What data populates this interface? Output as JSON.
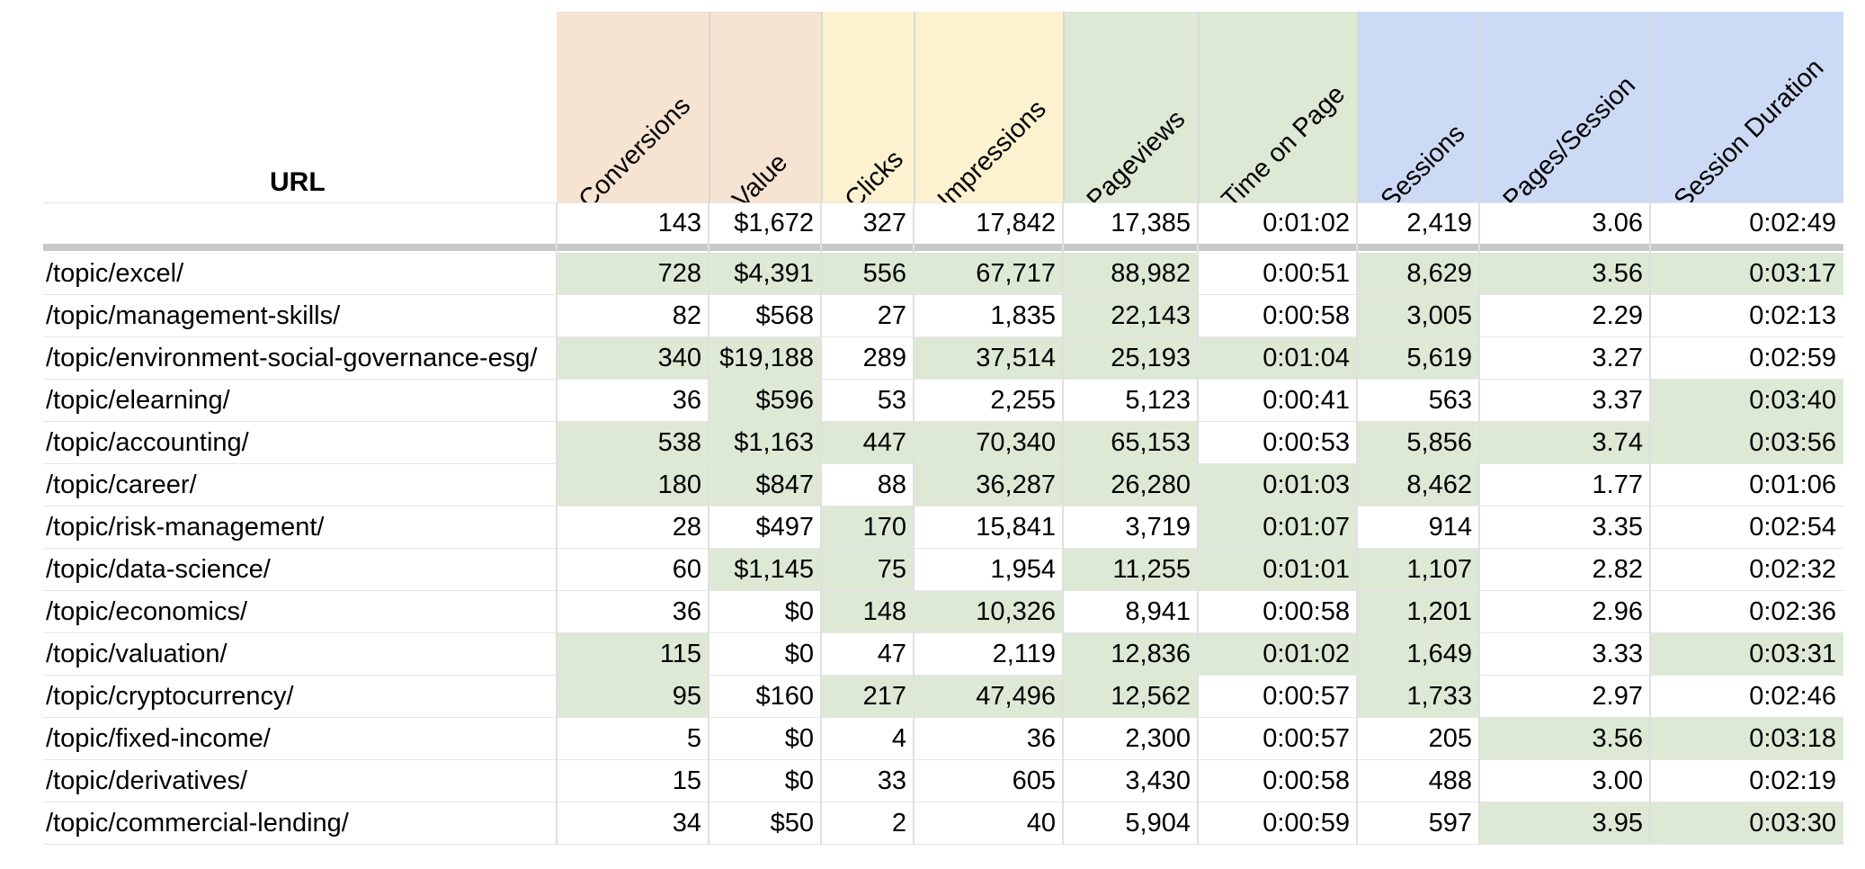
{
  "colors": {
    "conversion_header": "#f6e3d1",
    "clicks_header": "#fcf2cf",
    "engagement_header": "#dde9d5",
    "session_header": "#cddaf5",
    "highlight_cell": "#dde9d5",
    "separator": "#c9c9c9"
  },
  "table": {
    "url_header": "URL",
    "columns": [
      {
        "key": "conversions",
        "label": "Conversions"
      },
      {
        "key": "value",
        "label": "Value"
      },
      {
        "key": "clicks",
        "label": "Clicks"
      },
      {
        "key": "impressions",
        "label": "Impressions"
      },
      {
        "key": "pageviews",
        "label": "Pageviews"
      },
      {
        "key": "time_on_page",
        "label": "Time on Page"
      },
      {
        "key": "sessions",
        "label": "Sessions"
      },
      {
        "key": "pages_per_session",
        "label": "Pages/Session"
      },
      {
        "key": "session_duration",
        "label": "Session Duration"
      }
    ],
    "totals": [
      "143",
      "$1,672",
      "327",
      "17,842",
      "17,385",
      "0:01:02",
      "2,419",
      "3.06",
      "0:02:49"
    ],
    "rows": [
      {
        "url": "/topic/excel/",
        "values": [
          "728",
          "$4,391",
          "556",
          "67,717",
          "88,982",
          "0:00:51",
          "8,629",
          "3.56",
          "0:03:17"
        ],
        "highlight": [
          true,
          true,
          true,
          true,
          true,
          false,
          true,
          true,
          true
        ]
      },
      {
        "url": "/topic/management-skills/",
        "values": [
          "82",
          "$568",
          "27",
          "1,835",
          "22,143",
          "0:00:58",
          "3,005",
          "2.29",
          "0:02:13"
        ],
        "highlight": [
          false,
          false,
          false,
          false,
          true,
          false,
          true,
          false,
          false
        ]
      },
      {
        "url": "/topic/environment-social-governance-esg/",
        "values": [
          "340",
          "$19,188",
          "289",
          "37,514",
          "25,193",
          "0:01:04",
          "5,619",
          "3.27",
          "0:02:59"
        ],
        "highlight": [
          true,
          true,
          false,
          true,
          true,
          true,
          true,
          false,
          false
        ]
      },
      {
        "url": "/topic/elearning/",
        "values": [
          "36",
          "$596",
          "53",
          "2,255",
          "5,123",
          "0:00:41",
          "563",
          "3.37",
          "0:03:40"
        ],
        "highlight": [
          false,
          true,
          false,
          false,
          false,
          false,
          false,
          false,
          true
        ]
      },
      {
        "url": "/topic/accounting/",
        "values": [
          "538",
          "$1,163",
          "447",
          "70,340",
          "65,153",
          "0:00:53",
          "5,856",
          "3.74",
          "0:03:56"
        ],
        "highlight": [
          true,
          true,
          true,
          true,
          true,
          false,
          true,
          true,
          true
        ]
      },
      {
        "url": "/topic/career/",
        "values": [
          "180",
          "$847",
          "88",
          "36,287",
          "26,280",
          "0:01:03",
          "8,462",
          "1.77",
          "0:01:06"
        ],
        "highlight": [
          true,
          true,
          false,
          true,
          true,
          true,
          true,
          false,
          false
        ]
      },
      {
        "url": "/topic/risk-management/",
        "values": [
          "28",
          "$497",
          "170",
          "15,841",
          "3,719",
          "0:01:07",
          "914",
          "3.35",
          "0:02:54"
        ],
        "highlight": [
          false,
          false,
          true,
          false,
          false,
          true,
          false,
          false,
          false
        ]
      },
      {
        "url": "/topic/data-science/",
        "values": [
          "60",
          "$1,145",
          "75",
          "1,954",
          "11,255",
          "0:01:01",
          "1,107",
          "2.82",
          "0:02:32"
        ],
        "highlight": [
          false,
          true,
          true,
          false,
          true,
          true,
          true,
          false,
          false
        ]
      },
      {
        "url": "/topic/economics/",
        "values": [
          "36",
          "$0",
          "148",
          "10,326",
          "8,941",
          "0:00:58",
          "1,201",
          "2.96",
          "0:02:36"
        ],
        "highlight": [
          false,
          false,
          true,
          true,
          false,
          false,
          true,
          false,
          false
        ]
      },
      {
        "url": "/topic/valuation/",
        "values": [
          "115",
          "$0",
          "47",
          "2,119",
          "12,836",
          "0:01:02",
          "1,649",
          "3.33",
          "0:03:31"
        ],
        "highlight": [
          true,
          false,
          false,
          false,
          true,
          true,
          true,
          false,
          true
        ]
      },
      {
        "url": "/topic/cryptocurrency/",
        "values": [
          "95",
          "$160",
          "217",
          "47,496",
          "12,562",
          "0:00:57",
          "1,733",
          "2.97",
          "0:02:46"
        ],
        "highlight": [
          true,
          false,
          true,
          true,
          true,
          false,
          true,
          false,
          false
        ]
      },
      {
        "url": "/topic/fixed-income/",
        "values": [
          "5",
          "$0",
          "4",
          "36",
          "2,300",
          "0:00:57",
          "205",
          "3.56",
          "0:03:18"
        ],
        "highlight": [
          false,
          false,
          false,
          false,
          false,
          false,
          false,
          true,
          true
        ]
      },
      {
        "url": "/topic/derivatives/",
        "values": [
          "15",
          "$0",
          "33",
          "605",
          "3,430",
          "0:00:58",
          "488",
          "3.00",
          "0:02:19"
        ],
        "highlight": [
          false,
          false,
          false,
          false,
          false,
          false,
          false,
          false,
          false
        ]
      },
      {
        "url": "/topic/commercial-lending/",
        "values": [
          "34",
          "$50",
          "2",
          "40",
          "5,904",
          "0:00:59",
          "597",
          "3.95",
          "0:03:30"
        ],
        "highlight": [
          false,
          false,
          false,
          false,
          false,
          false,
          false,
          true,
          true
        ]
      }
    ]
  }
}
